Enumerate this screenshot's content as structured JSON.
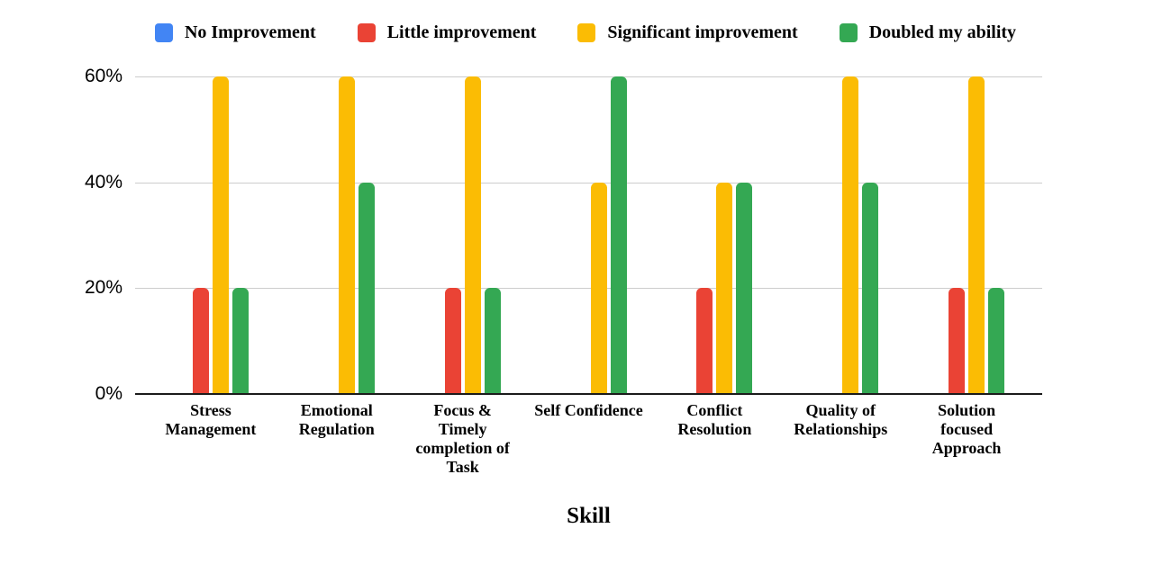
{
  "chart_data": {
    "type": "bar",
    "title": "",
    "xlabel": "Skill",
    "ylabel": "",
    "legend_position": "top",
    "grid": true,
    "grid_color": "#cccccc",
    "axis_line_color": "#1c1c1c",
    "text_color": "#000000",
    "ylim": [
      0,
      60
    ],
    "y_ticks": [
      {
        "label": "0%",
        "value": 0
      },
      {
        "label": "20%",
        "value": 20
      },
      {
        "label": "40%",
        "value": 40
      },
      {
        "label": "60%",
        "value": 60
      }
    ],
    "categories": [
      "Stress Management",
      "Emotional Regulation",
      "Focus & Timely completion of Task",
      "Self Confidence",
      "Conflict Resolution",
      "Quality of Relationships",
      "Solution focused Approach"
    ],
    "series": [
      {
        "name": "No Improvement",
        "color": "#4285F4",
        "values": [
          0,
          0,
          0,
          0,
          0,
          0,
          0
        ]
      },
      {
        "name": "Little improvement",
        "color": "#EA4335",
        "values": [
          20,
          0,
          20,
          0,
          20,
          0,
          20
        ]
      },
      {
        "name": "Significant improvement",
        "color": "#FBBC04",
        "values": [
          60,
          60,
          60,
          40,
          40,
          60,
          60
        ]
      },
      {
        "name": "Doubled my ability",
        "color": "#34A853",
        "values": [
          20,
          40,
          20,
          60,
          40,
          40,
          20
        ]
      }
    ]
  }
}
